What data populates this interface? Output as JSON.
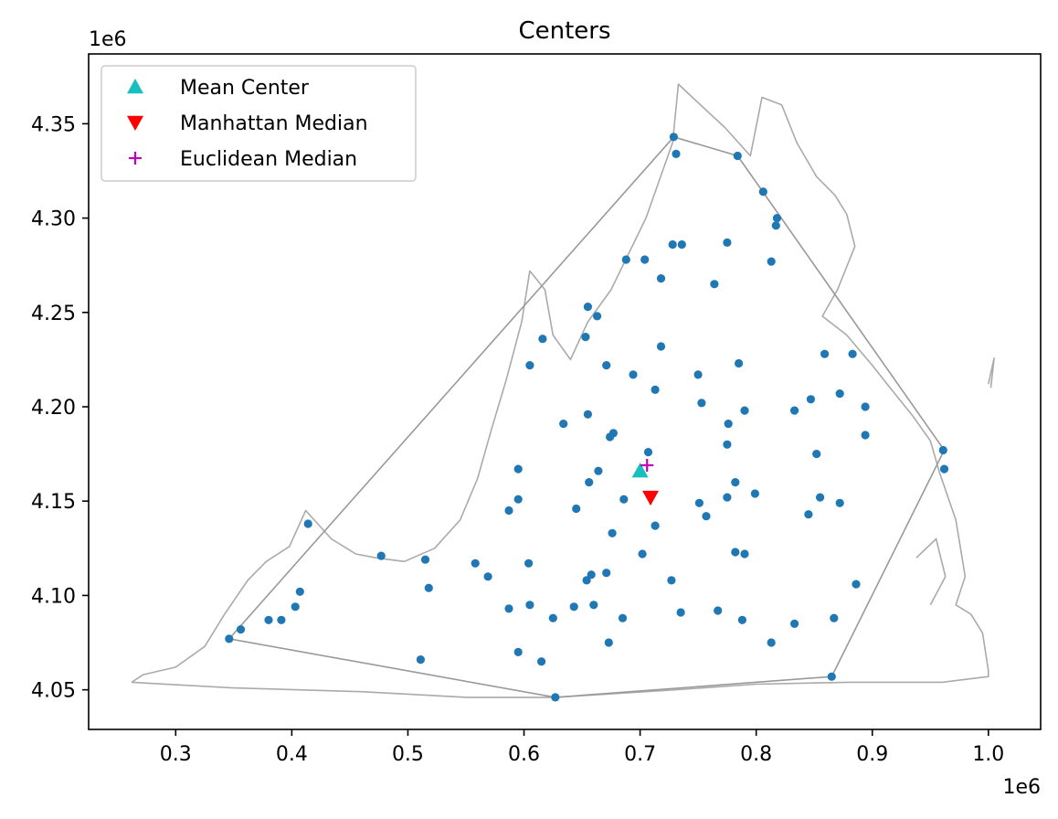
{
  "chart_data": {
    "type": "scatter",
    "title": "Centers",
    "xlabel": "",
    "ylabel": "",
    "x_offset_label": "1e6",
    "y_offset_label": "1e6",
    "xlim": [
      0.225,
      1.045
    ],
    "ylim": [
      4.029,
      4.387
    ],
    "xticks": [
      0.3,
      0.4,
      0.5,
      0.6,
      0.7,
      0.8,
      0.9,
      1.0
    ],
    "xtick_labels": [
      "0.3",
      "0.4",
      "0.5",
      "0.6",
      "0.7",
      "0.8",
      "0.9",
      "1.0"
    ],
    "yticks": [
      4.05,
      4.1,
      4.15,
      4.2,
      4.25,
      4.3,
      4.35
    ],
    "ytick_labels": [
      "4.05",
      "4.10",
      "4.15",
      "4.20",
      "4.25",
      "4.30",
      "4.35"
    ],
    "grid": false,
    "legend_position": "top-left",
    "colors": {
      "points": "#1f77b4",
      "mean": "#17bfbf",
      "manhattan": "#ff0000",
      "euclidean": "#bf00bf",
      "boundary": "#aaaaaa",
      "hull": "#999999"
    },
    "legend": [
      {
        "label": "Mean Center",
        "marker": "triangle-up",
        "color": "#17bfbf"
      },
      {
        "label": "Manhattan Median",
        "marker": "triangle-down",
        "color": "#ff0000"
      },
      {
        "label": "Euclidean Median",
        "marker": "plus",
        "color": "#bf00bf"
      }
    ],
    "centers": {
      "mean_center": [
        0.7,
        4.166
      ],
      "manhattan_median": [
        0.709,
        4.152
      ],
      "euclidean_median": [
        0.706,
        4.169
      ]
    },
    "points": [
      [
        0.729,
        4.343
      ],
      [
        0.731,
        4.334
      ],
      [
        0.784,
        4.333
      ],
      [
        0.806,
        4.314
      ],
      [
        0.818,
        4.3
      ],
      [
        0.817,
        4.296
      ],
      [
        0.688,
        4.278
      ],
      [
        0.704,
        4.278
      ],
      [
        0.728,
        4.286
      ],
      [
        0.736,
        4.286
      ],
      [
        0.775,
        4.287
      ],
      [
        0.813,
        4.277
      ],
      [
        0.718,
        4.268
      ],
      [
        0.764,
        4.265
      ],
      [
        0.655,
        4.253
      ],
      [
        0.663,
        4.248
      ],
      [
        0.616,
        4.236
      ],
      [
        0.653,
        4.237
      ],
      [
        0.718,
        4.232
      ],
      [
        0.859,
        4.228
      ],
      [
        0.883,
        4.228
      ],
      [
        0.605,
        4.222
      ],
      [
        0.671,
        4.222
      ],
      [
        0.785,
        4.223
      ],
      [
        0.694,
        4.217
      ],
      [
        0.75,
        4.217
      ],
      [
        0.713,
        4.209
      ],
      [
        0.872,
        4.207
      ],
      [
        0.847,
        4.204
      ],
      [
        0.753,
        4.202
      ],
      [
        0.894,
        4.2
      ],
      [
        0.833,
        4.198
      ],
      [
        0.79,
        4.198
      ],
      [
        0.655,
        4.196
      ],
      [
        0.776,
        4.191
      ],
      [
        0.634,
        4.191
      ],
      [
        0.677,
        4.186
      ],
      [
        0.674,
        4.184
      ],
      [
        0.894,
        4.185
      ],
      [
        0.775,
        4.18
      ],
      [
        0.707,
        4.176
      ],
      [
        0.852,
        4.175
      ],
      [
        0.961,
        4.177
      ],
      [
        0.962,
        4.167
      ],
      [
        0.595,
        4.167
      ],
      [
        0.664,
        4.166
      ],
      [
        0.656,
        4.16
      ],
      [
        0.782,
        4.16
      ],
      [
        0.799,
        4.154
      ],
      [
        0.855,
        4.152
      ],
      [
        0.595,
        4.151
      ],
      [
        0.686,
        4.151
      ],
      [
        0.775,
        4.152
      ],
      [
        0.751,
        4.149
      ],
      [
        0.872,
        4.149
      ],
      [
        0.645,
        4.146
      ],
      [
        0.587,
        4.145
      ],
      [
        0.757,
        4.142
      ],
      [
        0.845,
        4.143
      ],
      [
        0.414,
        4.138
      ],
      [
        0.713,
        4.137
      ],
      [
        0.676,
        4.133
      ],
      [
        0.782,
        4.123
      ],
      [
        0.79,
        4.122
      ],
      [
        0.702,
        4.122
      ],
      [
        0.477,
        4.121
      ],
      [
        0.515,
        4.119
      ],
      [
        0.604,
        4.117
      ],
      [
        0.558,
        4.117
      ],
      [
        0.671,
        4.112
      ],
      [
        0.658,
        4.111
      ],
      [
        0.569,
        4.11
      ],
      [
        0.654,
        4.108
      ],
      [
        0.727,
        4.108
      ],
      [
        0.886,
        4.106
      ],
      [
        0.518,
        4.104
      ],
      [
        0.407,
        4.102
      ],
      [
        0.605,
        4.095
      ],
      [
        0.66,
        4.095
      ],
      [
        0.643,
        4.094
      ],
      [
        0.403,
        4.094
      ],
      [
        0.587,
        4.093
      ],
      [
        0.735,
        4.091
      ],
      [
        0.767,
        4.092
      ],
      [
        0.38,
        4.087
      ],
      [
        0.391,
        4.087
      ],
      [
        0.625,
        4.088
      ],
      [
        0.685,
        4.088
      ],
      [
        0.788,
        4.087
      ],
      [
        0.867,
        4.088
      ],
      [
        0.833,
        4.085
      ],
      [
        0.356,
        4.082
      ],
      [
        0.346,
        4.077
      ],
      [
        0.673,
        4.075
      ],
      [
        0.813,
        4.075
      ],
      [
        0.595,
        4.07
      ],
      [
        0.511,
        4.066
      ],
      [
        0.615,
        4.065
      ],
      [
        0.865,
        4.057
      ],
      [
        0.627,
        4.046
      ]
    ],
    "hull": [
      [
        0.346,
        4.077
      ],
      [
        0.729,
        4.343
      ],
      [
        0.784,
        4.333
      ],
      [
        0.962,
        4.177
      ],
      [
        0.865,
        4.057
      ],
      [
        0.627,
        4.046
      ],
      [
        0.346,
        4.077
      ]
    ],
    "boundary": [
      [
        0.262,
        4.054
      ],
      [
        0.272,
        4.058
      ],
      [
        0.3,
        4.062
      ],
      [
        0.325,
        4.073
      ],
      [
        0.342,
        4.09
      ],
      [
        0.362,
        4.108
      ],
      [
        0.378,
        4.118
      ],
      [
        0.398,
        4.126
      ],
      [
        0.412,
        4.145
      ],
      [
        0.434,
        4.13
      ],
      [
        0.455,
        4.122
      ],
      [
        0.472,
        4.12
      ],
      [
        0.497,
        4.118
      ],
      [
        0.523,
        4.125
      ],
      [
        0.545,
        4.14
      ],
      [
        0.56,
        4.162
      ],
      [
        0.572,
        4.188
      ],
      [
        0.585,
        4.215
      ],
      [
        0.598,
        4.245
      ],
      [
        0.605,
        4.272
      ],
      [
        0.618,
        4.262
      ],
      [
        0.625,
        4.238
      ],
      [
        0.64,
        4.225
      ],
      [
        0.655,
        4.245
      ],
      [
        0.675,
        4.262
      ],
      [
        0.705,
        4.3
      ],
      [
        0.728,
        4.34
      ],
      [
        0.733,
        4.371
      ],
      [
        0.745,
        4.364
      ],
      [
        0.773,
        4.348
      ],
      [
        0.795,
        4.333
      ],
      [
        0.805,
        4.364
      ],
      [
        0.822,
        4.36
      ],
      [
        0.835,
        4.34
      ],
      [
        0.852,
        4.322
      ],
      [
        0.868,
        4.312
      ],
      [
        0.878,
        4.302
      ],
      [
        0.885,
        4.285
      ],
      [
        0.87,
        4.262
      ],
      [
        0.857,
        4.248
      ],
      [
        0.878,
        4.238
      ],
      [
        0.9,
        4.222
      ],
      [
        0.918,
        4.208
      ],
      [
        0.935,
        4.195
      ],
      [
        0.95,
        4.182
      ],
      [
        0.958,
        4.165
      ],
      [
        0.972,
        4.14
      ],
      [
        0.98,
        4.11
      ],
      [
        0.972,
        4.095
      ],
      [
        0.985,
        4.09
      ],
      [
        0.995,
        4.08
      ],
      [
        1.0,
        4.06
      ],
      [
        1.0,
        4.057
      ],
      [
        0.96,
        4.054
      ],
      [
        0.88,
        4.054
      ],
      [
        0.8,
        4.053
      ],
      [
        0.73,
        4.05
      ],
      [
        0.627,
        4.046
      ],
      [
        0.55,
        4.046
      ],
      [
        0.46,
        4.049
      ],
      [
        0.35,
        4.051
      ],
      [
        0.262,
        4.054
      ]
    ],
    "coastline_islands": [
      [
        [
          1.002,
          4.21
        ],
        [
          1.005,
          4.226
        ],
        [
          1.0,
          4.212
        ]
      ],
      [
        [
          0.938,
          4.12
        ],
        [
          0.955,
          4.13
        ],
        [
          0.963,
          4.11
        ],
        [
          0.95,
          4.095
        ]
      ]
    ]
  }
}
